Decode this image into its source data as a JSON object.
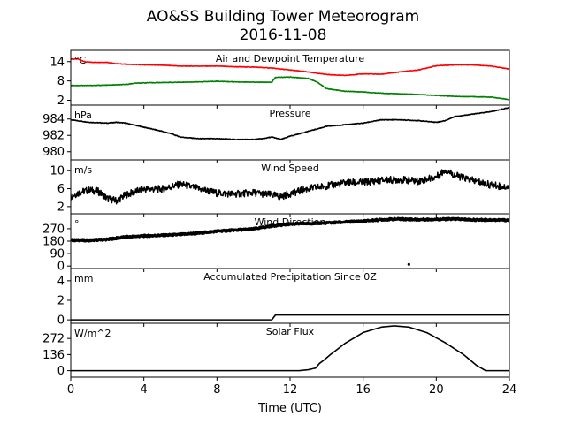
{
  "figure": {
    "title_line1": "AO&SS Building Tower Meteorogram",
    "title_line2": "2016-11-08",
    "xlabel": "Time (UTC)"
  },
  "chart_data": [
    {
      "type": "line",
      "title": "Air and Dewpoint Temperature",
      "unit": "°C",
      "xlim": [
        0,
        24
      ],
      "ylim": [
        0.5,
        17.5
      ],
      "yticks": [
        2,
        8,
        14
      ],
      "series": [
        {
          "color": "#ff0000",
          "x": [
            0,
            0.4,
            0.8,
            1.2,
            2,
            2.4,
            3,
            4,
            5,
            6,
            7,
            8,
            9,
            10,
            11,
            12,
            13,
            13.5,
            14,
            15,
            16,
            17,
            18,
            19,
            20,
            21,
            22,
            23,
            24
          ],
          "y": [
            14.8,
            14.8,
            13.9,
            13.8,
            13.8,
            13.4,
            13.2,
            13.0,
            12.9,
            12.6,
            12.6,
            12.6,
            12.4,
            12.3,
            12.0,
            11.4,
            10.8,
            10.4,
            10.0,
            9.7,
            10.2,
            10.1,
            10.8,
            11.4,
            12.7,
            13.0,
            13.0,
            12.6,
            11.7
          ]
        },
        {
          "color": "#008000",
          "x": [
            0,
            1,
            2,
            3,
            3.5,
            4,
            5,
            6,
            7,
            8,
            9,
            10,
            11,
            11.2,
            12,
            13,
            13.5,
            14,
            15,
            16,
            17,
            18,
            19,
            20,
            21,
            22,
            23,
            24
          ],
          "y": [
            6.6,
            6.6,
            6.7,
            6.9,
            7.3,
            7.4,
            7.5,
            7.6,
            7.7,
            7.9,
            7.7,
            7.6,
            7.6,
            9.1,
            9.2,
            8.8,
            7.6,
            5.6,
            4.8,
            4.6,
            4.2,
            4.0,
            3.8,
            3.5,
            3.2,
            3.1,
            3.0,
            2.2
          ]
        }
      ]
    },
    {
      "type": "line",
      "title": "Pressure",
      "unit": "hPa",
      "xlim": [
        0,
        24
      ],
      "ylim": [
        979,
        985.7
      ],
      "yticks": [
        980,
        982,
        984
      ],
      "series": [
        {
          "color": "#000000",
          "x": [
            0,
            1,
            2,
            2.5,
            3,
            4,
            5,
            5.5,
            6,
            7,
            8,
            9,
            10,
            10.5,
            11,
            11.5,
            12,
            13,
            14,
            15,
            16,
            17,
            18,
            19,
            20,
            20.5,
            21,
            22,
            23,
            24
          ],
          "y": [
            983.9,
            983.6,
            983.5,
            983.6,
            983.5,
            983.0,
            982.5,
            982.2,
            981.8,
            981.6,
            981.6,
            981.5,
            981.5,
            981.6,
            981.8,
            981.5,
            981.9,
            982.5,
            983.1,
            983.3,
            983.5,
            983.9,
            983.9,
            983.8,
            983.6,
            983.8,
            984.3,
            984.6,
            984.9,
            985.4
          ]
        }
      ]
    },
    {
      "type": "line",
      "title": "Wind Speed",
      "unit": "m/s",
      "xlim": [
        0,
        24
      ],
      "ylim": [
        0.4,
        12.4
      ],
      "yticks": [
        2,
        6,
        10
      ],
      "series": [
        {
          "color": "#000000",
          "x": [
            0,
            0.5,
            1,
            1.5,
            2,
            2.5,
            3,
            4,
            5,
            6,
            7,
            8,
            9,
            10,
            11,
            11.5,
            12,
            13,
            14,
            15,
            16,
            17,
            18,
            19,
            20,
            20.5,
            21,
            22,
            23,
            24
          ],
          "y": [
            4.3,
            5.2,
            5.7,
            5.4,
            3.8,
            3.3,
            4.6,
            5.9,
            5.9,
            7.0,
            6.0,
            5.0,
            4.8,
            5.1,
            4.6,
            4.2,
            4.9,
            6.0,
            6.6,
            7.3,
            7.4,
            7.9,
            8.0,
            7.7,
            8.6,
            10.2,
            9.0,
            7.8,
            6.8,
            6.3
          ]
        }
      ]
    },
    {
      "type": "scatter",
      "title": "Wind Direction",
      "unit": "°",
      "xlim": [
        0,
        24
      ],
      "ylim": [
        -18,
        378
      ],
      "yticks": [
        0,
        90,
        180,
        270
      ],
      "series": [
        {
          "color": "#000000",
          "x": [
            0,
            1,
            2,
            3,
            4,
            5,
            6,
            7,
            8,
            9,
            10,
            11,
            12,
            13,
            14,
            15,
            16,
            17,
            18,
            19,
            20,
            21,
            22,
            23,
            24
          ],
          "y": [
            187,
            186,
            193,
            210,
            218,
            222,
            228,
            238,
            252,
            260,
            268,
            290,
            304,
            308,
            312,
            318,
            325,
            336,
            340,
            336,
            338,
            340,
            334,
            334,
            332
          ]
        },
        {
          "color": "#000000",
          "x": [
            18.5
          ],
          "y": [
            12
          ]
        }
      ]
    },
    {
      "type": "line",
      "title": "Accumulated Precipitation Since 0Z",
      "unit": "mm",
      "xlim": [
        0,
        24
      ],
      "ylim": [
        -0.35,
        5.25
      ],
      "yticks": [
        0,
        2,
        4
      ],
      "series": [
        {
          "color": "#000000",
          "x": [
            0,
            11.0,
            11.2,
            24
          ],
          "y": [
            0,
            0,
            0.5,
            0.5
          ]
        }
      ]
    },
    {
      "type": "line",
      "title": "Solar Flux",
      "unit": "W/m^2",
      "xlim": [
        0,
        24
      ],
      "ylim": [
        -55,
        400
      ],
      "yticks": [
        0,
        136,
        272
      ],
      "series": [
        {
          "color": "#000000",
          "x": [
            0,
            12.5,
            13.0,
            13.4,
            13.6,
            13.9,
            14.2,
            14.5,
            15,
            16,
            17,
            17.7,
            18.5,
            19.5,
            20.5,
            21.5,
            22.2,
            22.7,
            24
          ],
          "y": [
            0,
            0,
            8,
            22,
            60,
            95,
            135,
            170,
            230,
            322,
            368,
            378,
            368,
            320,
            235,
            135,
            45,
            0,
            0
          ]
        }
      ]
    }
  ],
  "xaxis": {
    "ticks": [
      0,
      4,
      8,
      12,
      16,
      20,
      24
    ],
    "tick_labels": [
      "0",
      "4",
      "8",
      "12",
      "16",
      "20",
      "24"
    ]
  }
}
